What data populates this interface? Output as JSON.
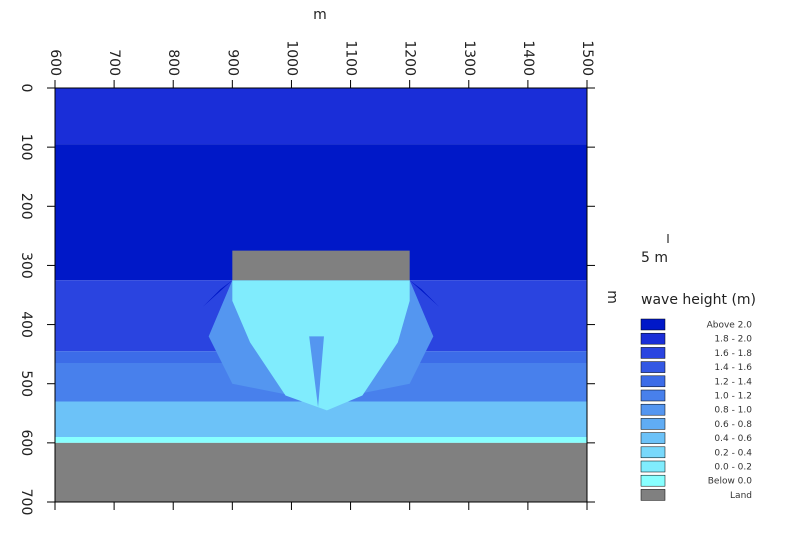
{
  "chart_data": {
    "type": "contour",
    "x_label": "m",
    "y_label": "m",
    "xlim": [
      600,
      1500
    ],
    "ylim": [
      0,
      700
    ],
    "y_inverted": true,
    "xticks": [
      600,
      700,
      800,
      900,
      1000,
      1100,
      1200,
      1300,
      1400,
      1500
    ],
    "yticks": [
      0,
      100,
      200,
      300,
      400,
      500,
      600,
      700
    ],
    "vector_scale_label": "5 m",
    "legend_title": "wave height (m)",
    "legend": [
      {
        "label": "Above 2.0",
        "color": "#0018c8"
      },
      {
        "label": "1.8 - 2.0",
        "color": "#1a2ed8"
      },
      {
        "label": "1.6 - 1.8",
        "color": "#2a44e0"
      },
      {
        "label": "1.4 - 1.6",
        "color": "#3458e4"
      },
      {
        "label": "1.2 - 1.4",
        "color": "#3c6ce8"
      },
      {
        "label": "1.0 - 1.2",
        "color": "#4880ec"
      },
      {
        "label": "0.8 - 1.0",
        "color": "#5496f0"
      },
      {
        "label": "0.6 - 0.8",
        "color": "#60acf4"
      },
      {
        "label": "0.4 - 0.6",
        "color": "#6cc2f8"
      },
      {
        "label": "0.2 - 0.4",
        "color": "#78d8fb"
      },
      {
        "label": "0.0 - 0.2",
        "color": "#80ecfd"
      },
      {
        "label": "Below 0.0",
        "color": "#88ffff"
      },
      {
        "label": "Land",
        "color": "#808080"
      }
    ],
    "zones": [
      {
        "color": "#1a2ed8",
        "x": [
          600,
          1500,
          1500,
          600
        ],
        "y": [
          0,
          0,
          95,
          95
        ]
      },
      {
        "color": "#0018c8",
        "x": [
          600,
          1500,
          1500,
          600
        ],
        "y": [
          95,
          95,
          325,
          325
        ]
      },
      {
        "color": "#2a44e0",
        "x": [
          600,
          1500,
          1500,
          600
        ],
        "y": [
          325,
          325,
          445,
          445
        ]
      },
      {
        "color": "#3c6ce8",
        "x": [
          600,
          1500,
          1500,
          600
        ],
        "y": [
          445,
          445,
          465,
          465
        ]
      },
      {
        "color": "#4880ec",
        "x": [
          600,
          1500,
          1500,
          600
        ],
        "y": [
          465,
          465,
          530,
          530
        ]
      },
      {
        "color": "#6cc2f8",
        "x": [
          600,
          1500,
          1500,
          600
        ],
        "y": [
          530,
          530,
          590,
          590
        ]
      },
      {
        "color": "#88ffff",
        "x": [
          600,
          1500,
          1500,
          600
        ],
        "y": [
          590,
          590,
          600,
          600
        ]
      },
      {
        "color": "#5496f0",
        "x": [
          900,
          1200,
          1240,
          1200,
          1100,
          1000,
          900,
          860
        ],
        "y": [
          325,
          325,
          420,
          500,
          520,
          520,
          500,
          420
        ]
      },
      {
        "color": "#80ecfd",
        "x": [
          900,
          1200,
          1200,
          1180,
          1120,
          1060,
          990,
          930,
          900
        ],
        "y": [
          325,
          325,
          360,
          430,
          520,
          545,
          520,
          430,
          360
        ]
      },
      {
        "color": "#5496f0",
        "x": [
          1030,
          1045,
          1055
        ],
        "y": [
          420,
          540,
          420
        ]
      },
      {
        "color": "#0018c8",
        "x": [
          850,
          900,
          880
        ],
        "y": [
          370,
          325,
          340
        ]
      },
      {
        "color": "#0018c8",
        "x": [
          1250,
          1200,
          1220
        ],
        "y": [
          370,
          325,
          340
        ]
      },
      {
        "color": "#808080",
        "x": [
          600,
          1500,
          1500,
          600
        ],
        "y": [
          600,
          600,
          700,
          700
        ]
      },
      {
        "color": "#808080",
        "x": [
          900,
          1200,
          1200,
          900
        ],
        "y": [
          275,
          275,
          325,
          325
        ]
      }
    ]
  }
}
